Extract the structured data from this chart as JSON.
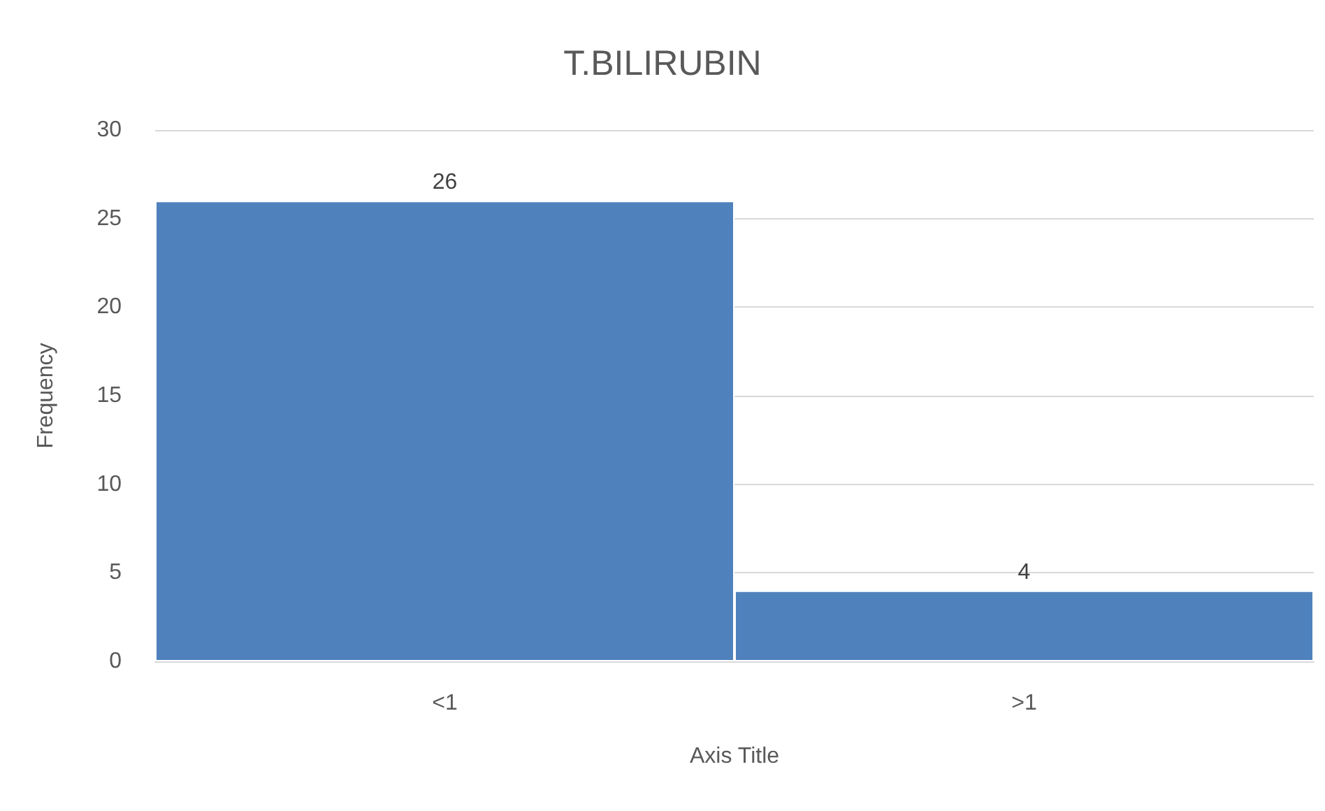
{
  "chart_data": {
    "type": "bar",
    "title": "T.BILIRUBIN",
    "xlabel": "Axis Title",
    "ylabel": "Frequency",
    "categories": [
      "<1",
      ">1"
    ],
    "values": [
      26,
      4
    ],
    "color": "#4f81bd",
    "ylim": [
      0,
      30
    ],
    "yticks": [
      0,
      5,
      10,
      15,
      20,
      25,
      30
    ],
    "grid": "y",
    "data_labels": true
  }
}
